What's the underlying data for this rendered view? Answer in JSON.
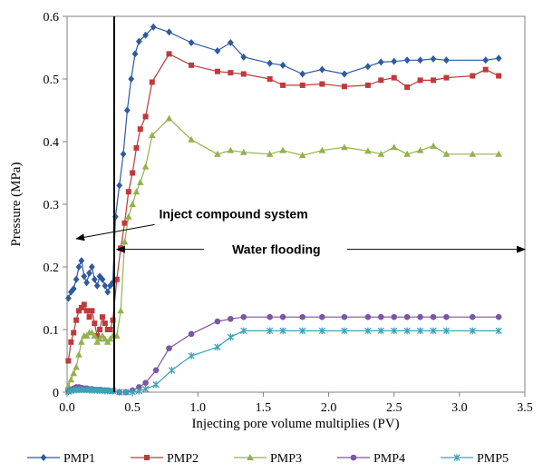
{
  "chart_data": {
    "type": "line",
    "xlabel": "Injecting pore volume  multiplies (PV)",
    "ylabel": "Pressure (MPa)",
    "xlim": [
      0,
      3.5
    ],
    "ylim": [
      0,
      0.6
    ],
    "x_ticks": [
      "0.0",
      "0.5",
      "1.0",
      "1.5",
      "2.0",
      "2.5",
      "3.0",
      "3.5"
    ],
    "y_ticks": [
      "0",
      "0.1",
      "0.2",
      "0.3",
      "0.4",
      "0.5",
      "0.6"
    ],
    "grid": false,
    "legend_position": "bottom",
    "divider_x": 0.36,
    "annotations": [
      {
        "text": "Inject compound system",
        "x": 1.05,
        "y": 0.285
      },
      {
        "text": "Water flooding",
        "x": 1.6,
        "y": 0.228
      }
    ],
    "series": [
      {
        "name": "PMP1",
        "color": "#2e5a9e",
        "marker": "diamond",
        "x": [
          0.01,
          0.03,
          0.05,
          0.07,
          0.09,
          0.11,
          0.13,
          0.15,
          0.17,
          0.19,
          0.21,
          0.23,
          0.25,
          0.27,
          0.29,
          0.31,
          0.33,
          0.35,
          0.37,
          0.4,
          0.43,
          0.46,
          0.49,
          0.52,
          0.55,
          0.6,
          0.66,
          0.78,
          0.95,
          1.15,
          1.25,
          1.35,
          1.55,
          1.65,
          1.8,
          1.95,
          2.12,
          2.3,
          2.4,
          2.5,
          2.6,
          2.7,
          2.8,
          2.9,
          3.2,
          3.3
        ],
        "y": [
          0.15,
          0.16,
          0.165,
          0.18,
          0.2,
          0.21,
          0.185,
          0.175,
          0.19,
          0.2,
          0.18,
          0.17,
          0.185,
          0.18,
          0.17,
          0.16,
          0.17,
          0.175,
          0.28,
          0.33,
          0.38,
          0.45,
          0.5,
          0.54,
          0.56,
          0.57,
          0.583,
          0.575,
          0.558,
          0.545,
          0.558,
          0.535,
          0.525,
          0.522,
          0.508,
          0.515,
          0.508,
          0.52,
          0.527,
          0.528,
          0.53,
          0.53,
          0.532,
          0.53,
          0.53,
          0.533
        ]
      },
      {
        "name": "PMP2",
        "color": "#c0393b",
        "marker": "square",
        "x": [
          0.01,
          0.03,
          0.05,
          0.07,
          0.09,
          0.11,
          0.13,
          0.15,
          0.17,
          0.19,
          0.21,
          0.23,
          0.25,
          0.27,
          0.29,
          0.31,
          0.33,
          0.35,
          0.38,
          0.41,
          0.44,
          0.47,
          0.5,
          0.53,
          0.56,
          0.6,
          0.65,
          0.78,
          0.95,
          1.15,
          1.25,
          1.35,
          1.55,
          1.65,
          1.8,
          1.95,
          2.12,
          2.3,
          2.4,
          2.5,
          2.6,
          2.7,
          2.8,
          2.9,
          3.1,
          3.2,
          3.3
        ],
        "y": [
          0.05,
          0.08,
          0.095,
          0.115,
          0.13,
          0.135,
          0.14,
          0.13,
          0.12,
          0.13,
          0.11,
          0.09,
          0.1,
          0.12,
          0.11,
          0.1,
          0.1,
          0.115,
          0.18,
          0.23,
          0.27,
          0.32,
          0.35,
          0.39,
          0.42,
          0.44,
          0.495,
          0.54,
          0.522,
          0.512,
          0.51,
          0.508,
          0.5,
          0.49,
          0.49,
          0.492,
          0.488,
          0.49,
          0.498,
          0.502,
          0.487,
          0.498,
          0.498,
          0.502,
          0.505,
          0.515,
          0.505
        ]
      },
      {
        "name": "PMP3",
        "color": "#92b24c",
        "marker": "triangle",
        "x": [
          0.01,
          0.03,
          0.05,
          0.07,
          0.09,
          0.11,
          0.13,
          0.15,
          0.17,
          0.19,
          0.21,
          0.23,
          0.25,
          0.27,
          0.29,
          0.31,
          0.33,
          0.35,
          0.38,
          0.41,
          0.44,
          0.47,
          0.5,
          0.53,
          0.56,
          0.6,
          0.65,
          0.78,
          0.95,
          1.15,
          1.25,
          1.35,
          1.55,
          1.65,
          1.8,
          1.95,
          2.12,
          2.3,
          2.4,
          2.5,
          2.6,
          2.7,
          2.8,
          2.9,
          3.1,
          3.3
        ],
        "y": [
          0.01,
          0.02,
          0.03,
          0.04,
          0.06,
          0.08,
          0.09,
          0.09,
          0.095,
          0.095,
          0.09,
          0.08,
          0.085,
          0.09,
          0.085,
          0.08,
          0.085,
          0.09,
          0.09,
          0.13,
          0.24,
          0.28,
          0.3,
          0.32,
          0.335,
          0.36,
          0.41,
          0.437,
          0.403,
          0.38,
          0.386,
          0.383,
          0.38,
          0.386,
          0.378,
          0.386,
          0.391,
          0.385,
          0.38,
          0.391,
          0.38,
          0.386,
          0.393,
          0.38,
          0.38,
          0.38
        ]
      },
      {
        "name": "PMP4",
        "color": "#7b56a3",
        "marker": "circle",
        "x": [
          0.01,
          0.03,
          0.05,
          0.07,
          0.09,
          0.11,
          0.13,
          0.15,
          0.17,
          0.19,
          0.21,
          0.23,
          0.25,
          0.27,
          0.29,
          0.31,
          0.33,
          0.35,
          0.4,
          0.45,
          0.5,
          0.55,
          0.6,
          0.68,
          0.78,
          0.95,
          1.15,
          1.25,
          1.35,
          1.55,
          1.65,
          1.8,
          1.95,
          2.12,
          2.3,
          2.4,
          2.5,
          2.6,
          2.7,
          2.8,
          2.9,
          3.1,
          3.3
        ],
        "y": [
          0.002,
          0.004,
          0.006,
          0.008,
          0.008,
          0.007,
          0.006,
          0.006,
          0.005,
          0.005,
          0.004,
          0.004,
          0.004,
          0.003,
          0.003,
          0.003,
          0.002,
          0.002,
          0.0,
          0.0,
          0.003,
          0.008,
          0.015,
          0.035,
          0.07,
          0.093,
          0.113,
          0.117,
          0.12,
          0.12,
          0.12,
          0.12,
          0.12,
          0.12,
          0.12,
          0.12,
          0.12,
          0.12,
          0.12,
          0.12,
          0.12,
          0.12,
          0.12
        ]
      },
      {
        "name": "PMP5",
        "color": "#3aa3b8",
        "marker": "star",
        "x": [
          0.01,
          0.03,
          0.05,
          0.07,
          0.09,
          0.11,
          0.13,
          0.15,
          0.17,
          0.19,
          0.21,
          0.23,
          0.25,
          0.27,
          0.29,
          0.31,
          0.33,
          0.35,
          0.4,
          0.45,
          0.5,
          0.55,
          0.6,
          0.68,
          0.8,
          0.95,
          1.15,
          1.25,
          1.35,
          1.55,
          1.65,
          1.8,
          1.95,
          2.12,
          2.3,
          2.4,
          2.5,
          2.6,
          2.7,
          2.8,
          2.9,
          3.1,
          3.3
        ],
        "y": [
          0.001,
          0.002,
          0.003,
          0.004,
          0.004,
          0.004,
          0.004,
          0.004,
          0.004,
          0.003,
          0.003,
          0.003,
          0.003,
          0.003,
          0.002,
          0.002,
          0.002,
          0.002,
          0.0,
          0.0,
          0.0,
          0.002,
          0.005,
          0.012,
          0.035,
          0.058,
          0.072,
          0.088,
          0.098,
          0.098,
          0.098,
          0.098,
          0.098,
          0.098,
          0.098,
          0.098,
          0.098,
          0.098,
          0.098,
          0.098,
          0.098,
          0.098,
          0.098
        ]
      }
    ]
  }
}
